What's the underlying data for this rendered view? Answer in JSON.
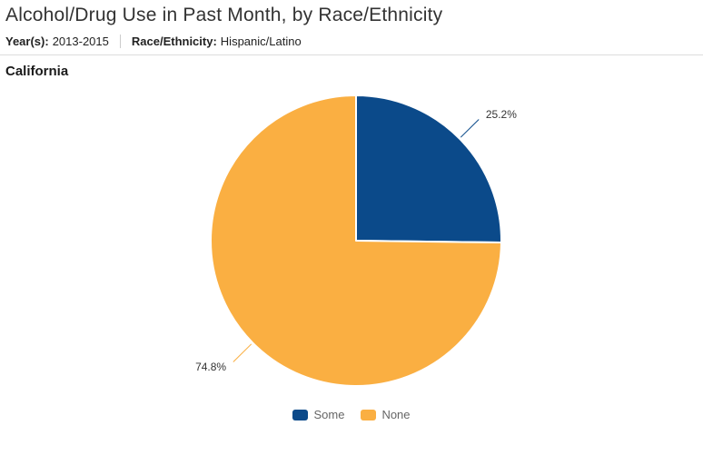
{
  "header": {
    "title": "Alcohol/Drug Use in Past Month, by Race/Ethnicity",
    "filters": [
      {
        "label": "Year(s):",
        "value": "2013-2015"
      },
      {
        "label": "Race/Ethnicity:",
        "value": "Hispanic/Latino"
      }
    ]
  },
  "section": {
    "heading": "California"
  },
  "chart_data": {
    "type": "pie",
    "title": "California",
    "categories": [
      "Some",
      "None"
    ],
    "values": [
      25.2,
      74.8
    ],
    "slices": [
      {
        "name": "Some",
        "value": 25.2,
        "label": "25.2%",
        "color": "#0b4a8a"
      },
      {
        "name": "None",
        "value": 74.8,
        "label": "74.8%",
        "color": "#faaf42"
      }
    ],
    "units": "percent",
    "start_angle": "12-o'clock, clockwise",
    "legend_position": "bottom",
    "data_labels": "outside with leader lines"
  },
  "colors": {
    "slice_border": "#ffffff",
    "data_label_text": "#333333",
    "legend_text": "#666666",
    "divider": "#dddddd",
    "title_text": "#333333"
  }
}
